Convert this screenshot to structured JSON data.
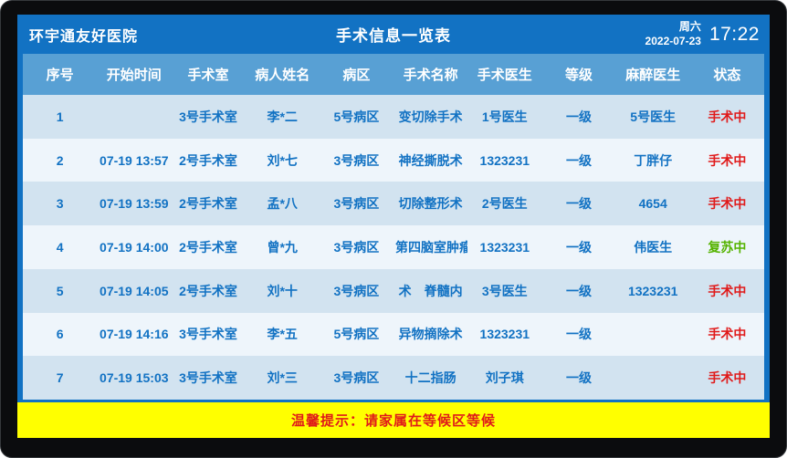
{
  "header": {
    "hospital_name": "环宇通友好医院",
    "title": "手术信息一览表",
    "weekday": "周六",
    "date": "2022-07-23",
    "time": "17:22"
  },
  "table": {
    "columns": [
      "序号",
      "开始时间",
      "手术室",
      "病人姓名",
      "病区",
      "手术名称",
      "手术医生",
      "等级",
      "麻醉医生",
      "状态"
    ],
    "rows": [
      [
        "1",
        "",
        "3号手术室",
        "李*二",
        "5号病区",
        "变切除手术",
        "1号医生",
        "一级",
        "5号医生",
        "手术中"
      ],
      [
        "2",
        "07-19 13:57",
        "2号手术室",
        "刘*七",
        "3号病区",
        "神经撕脱术",
        "1323231",
        "一级",
        "丁胖仔",
        "手术中"
      ],
      [
        "3",
        "07-19 13:59",
        "2号手术室",
        "孟*八",
        "3号病区",
        "切除整形术",
        "2号医生",
        "一级",
        "4654",
        "手术中"
      ],
      [
        "4",
        "07-19 14:00",
        "2号手术室",
        "曾*九",
        "3号病区",
        "第四脑室肿瘤",
        "1323231",
        "一级",
        "伟医生",
        "复苏中"
      ],
      [
        "5",
        "07-19 14:05",
        "2号手术室",
        "刘*十",
        "3号病区",
        "术　脊髓内",
        "3号医生",
        "一级",
        "1323231",
        "手术中"
      ],
      [
        "6",
        "07-19 14:16",
        "3号手术室",
        "李*五",
        "5号病区",
        "异物摘除术",
        "1323231",
        "一级",
        "",
        "手术中"
      ],
      [
        "7",
        "07-19 15:03",
        "3号手术室",
        "刘*三",
        "3号病区",
        "十二指肠",
        "刘子琪",
        "一级",
        "",
        "手术中"
      ]
    ]
  },
  "footer": {
    "notice": "温馨提示：请家属在等候区等候"
  },
  "colors": {
    "screen_blue": "#1272c3",
    "table_header_bg": "#58a0d4",
    "row_odd_bg": "#d2e3f0",
    "row_even_bg": "#eef5fb",
    "cell_text": "#1272c3",
    "footer_bg": "#ffff00",
    "footer_text": "#e01a1a",
    "status": {
      "手术中": "#e01a1a",
      "复苏中": "#55b300"
    }
  }
}
